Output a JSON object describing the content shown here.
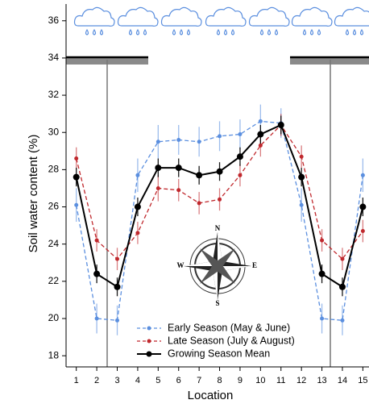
{
  "chart_data": {
    "type": "line",
    "x_label": "Location",
    "y_label": "Soil water content (%)",
    "x": [
      1,
      2,
      3,
      4,
      5,
      6,
      7,
      8,
      9,
      10,
      11,
      12,
      13,
      14,
      15
    ],
    "xlim": [
      0.5,
      15.3
    ],
    "ylim": [
      17.4,
      36.9
    ],
    "xticks": [
      1,
      2,
      3,
      4,
      5,
      6,
      7,
      8,
      9,
      10,
      11,
      12,
      13,
      14,
      15
    ],
    "yticks": [
      18,
      20,
      22,
      24,
      26,
      28,
      30,
      32,
      34,
      36
    ],
    "legend": "lower center",
    "compass": [
      "N",
      "E",
      "S",
      "W"
    ],
    "series": [
      {
        "name": "Early Season (May & June)",
        "color": "#5b8fdf",
        "dashed": true,
        "values": [
          26.1,
          20.0,
          19.9,
          27.7,
          29.5,
          29.6,
          29.5,
          29.8,
          29.9,
          30.6,
          30.5,
          26.1,
          20.0,
          19.9,
          27.7
        ],
        "errors": [
          0.9,
          0.8,
          0.8,
          0.9,
          0.9,
          0.8,
          0.8,
          0.8,
          0.8,
          0.9,
          0.8,
          0.9,
          0.8,
          0.8,
          0.9
        ]
      },
      {
        "name": "Late Season (July & August)",
        "color": "#c0282d",
        "dashed": true,
        "values": [
          28.6,
          24.2,
          23.2,
          24.6,
          27.0,
          26.9,
          26.2,
          26.4,
          27.7,
          29.3,
          30.4,
          28.7,
          24.2,
          23.2,
          24.7
        ],
        "errors": [
          0.6,
          0.6,
          0.6,
          0.6,
          0.7,
          0.6,
          0.6,
          0.6,
          0.6,
          0.6,
          0.6,
          0.6,
          0.6,
          0.6,
          0.6
        ]
      },
      {
        "name": "Growing Season Mean",
        "color": "#000000",
        "dashed": false,
        "values": [
          27.6,
          22.4,
          21.7,
          26.0,
          28.1,
          28.1,
          27.7,
          27.9,
          28.7,
          29.9,
          30.4,
          27.6,
          22.4,
          21.7,
          26.0
        ],
        "errors": [
          0.5,
          0.5,
          0.5,
          0.5,
          0.5,
          0.5,
          0.5,
          0.5,
          0.5,
          0.5,
          0.5,
          0.5,
          0.5,
          0.5,
          0.5
        ]
      }
    ]
  }
}
